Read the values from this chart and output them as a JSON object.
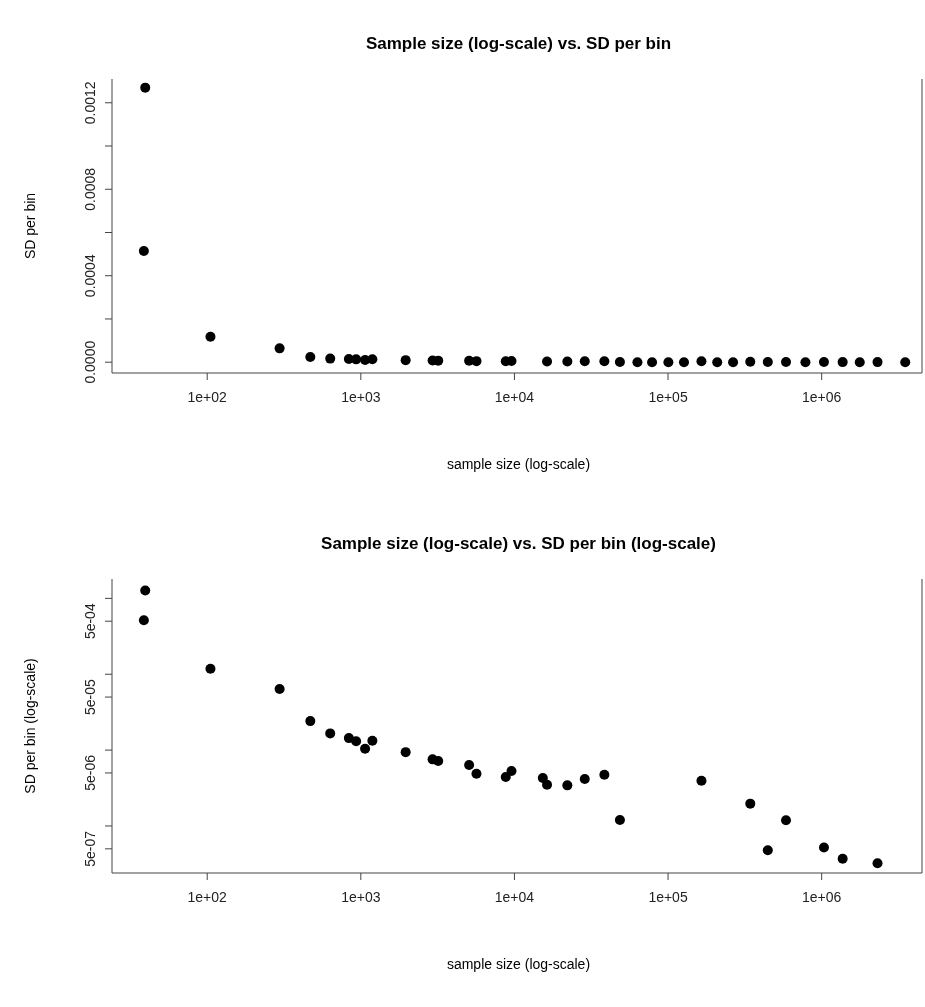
{
  "chart_data": [
    {
      "type": "scatter",
      "title": "Sample size (log-scale) vs. SD per bin",
      "xlabel": "sample size (log-scale)",
      "ylabel": "SD per bin",
      "log": "x",
      "marker": "circle",
      "color": "#000000",
      "x": [
        39.5,
        38.7,
        105,
        296,
        469,
        632,
        836,
        932,
        1066,
        1189,
        1958,
        2932,
        3190,
        5070,
        5660,
        8780,
        9570,
        15300,
        16300,
        22100,
        28700,
        38500,
        48600,
        63200,
        78700,
        100500,
        127000,
        165000,
        209000,
        265000,
        343000,
        446000,
        586000,
        784000,
        1035000,
        1370000,
        1770000,
        2310000,
        3500000
      ],
      "values": [
        0.00127,
        0.000514,
        0.000118,
        6.4e-05,
        2.41e-05,
        1.66e-05,
        1.44e-05,
        1.31e-05,
        1.04e-05,
        1.33e-05,
        9.4e-06,
        7.55e-06,
        7.2e-06,
        6.35e-06,
        4.89e-06,
        4.42e-06,
        5.3e-06,
        null,
        3.5e-06,
        3.43e-06,
        4.15e-06,
        4.74e-06,
        1.2e-06,
        0,
        0,
        0,
        0,
        3.95e-06,
        0,
        0,
        1.97e-06,
        4.8e-07,
        1.19e-06,
        0,
        5.2e-07,
        3.7e-07,
        0,
        3.23e-07,
        0
      ],
      "xlim": [
        24,
        4500000
      ],
      "xticks": [
        {
          "value": 100,
          "label": "1e+02"
        },
        {
          "value": 1000,
          "label": "1e+03"
        },
        {
          "value": 10000,
          "label": "1e+04"
        },
        {
          "value": 100000,
          "label": "1e+05"
        },
        {
          "value": 1000000,
          "label": "1e+06"
        }
      ],
      "ylim": [
        -5e-05,
        0.00131
      ],
      "yticks": [
        {
          "value": 0,
          "label": "0.0000"
        },
        {
          "value": 0.0002,
          "label": null
        },
        {
          "value": 0.0004,
          "label": "0.0004"
        },
        {
          "value": 0.0006,
          "label": null
        },
        {
          "value": 0.0008,
          "label": "0.0008"
        },
        {
          "value": 0.001,
          "label": null
        },
        {
          "value": 0.0012,
          "label": "0.0012"
        }
      ]
    },
    {
      "type": "scatter",
      "title": "Sample size (log-scale) vs. SD per bin (log-scale)",
      "xlabel": "sample size (log-scale)",
      "ylabel": "SD per bin (log-scale)",
      "log": "xy",
      "marker": "circle",
      "color": "#000000",
      "x": [
        39.5,
        38.7,
        105,
        296,
        469,
        632,
        836,
        932,
        1066,
        1189,
        1958,
        2932,
        3190,
        5070,
        5660,
        8780,
        9570,
        15300,
        16300,
        22100,
        28700,
        38500,
        48600,
        165000,
        343000,
        446000,
        586000,
        1035000,
        1370000,
        2310000
      ],
      "values": [
        0.00127,
        0.000514,
        0.000118,
        6.4e-05,
        2.41e-05,
        1.66e-05,
        1.44e-05,
        1.31e-05,
        1.04e-05,
        1.33e-05,
        9.4e-06,
        7.55e-06,
        7.2e-06,
        6.35e-06,
        4.89e-06,
        4.42e-06,
        5.3e-06,
        4.28e-06,
        3.5e-06,
        3.43e-06,
        4.15e-06,
        4.74e-06,
        1.2e-06,
        3.95e-06,
        1.97e-06,
        4.8e-07,
        1.19e-06,
        5.2e-07,
        3.7e-07,
        3.23e-07
      ],
      "xlim": [
        24,
        4500000
      ],
      "xticks": [
        {
          "value": 100,
          "label": "1e+02"
        },
        {
          "value": 1000,
          "label": "1e+03"
        },
        {
          "value": 10000,
          "label": "1e+04"
        },
        {
          "value": 100000,
          "label": "1e+05"
        },
        {
          "value": 1000000,
          "label": "1e+06"
        }
      ],
      "ylim": [
        2.4e-07,
        0.0018
      ],
      "yticks": [
        {
          "value": 0.001,
          "label": null
        },
        {
          "value": 0.0005,
          "label": "5e-04"
        },
        {
          "value": 0.0001,
          "label": null
        },
        {
          "value": 5e-05,
          "label": "5e-05"
        },
        {
          "value": 1e-05,
          "label": null
        },
        {
          "value": 5e-06,
          "label": "5e-06"
        },
        {
          "value": 1e-06,
          "label": null
        },
        {
          "value": 5e-07,
          "label": "5e-07"
        }
      ]
    }
  ]
}
